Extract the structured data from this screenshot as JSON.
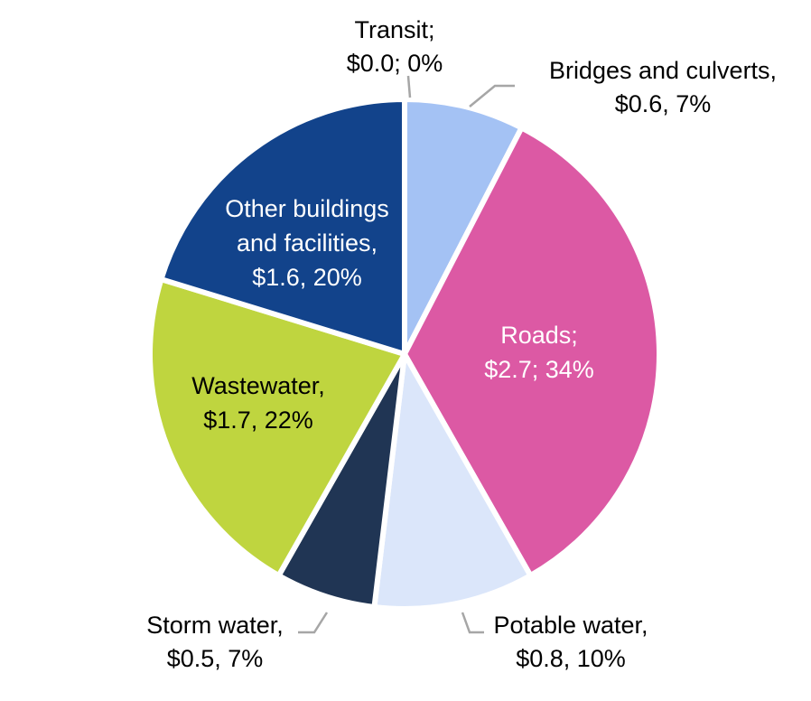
{
  "chart_data": {
    "type": "pie",
    "title": "",
    "slices": [
      {
        "label": "Transit;",
        "value_label": "$0.0; 0%",
        "value": 0.0,
        "percent": 0,
        "color": "#ffffff",
        "text_color": "#000000"
      },
      {
        "label": "Bridges and culverts,",
        "value_label": "$0.6, 7%",
        "value": 0.6,
        "percent": 7,
        "color": "#a4c2f4",
        "text_color": "#000000"
      },
      {
        "label": "Roads;",
        "value_label": "$2.7; 34%",
        "value": 2.7,
        "percent": 34,
        "color": "#dc59a4",
        "text_color": "#ffffff"
      },
      {
        "label": "Potable water,",
        "value_label": "$0.8, 10%",
        "value": 0.8,
        "percent": 10,
        "color": "#dbe6fa",
        "text_color": "#000000"
      },
      {
        "label": "Storm water,",
        "value_label": "$0.5, 7%",
        "value": 0.5,
        "percent": 7,
        "color": "#203554",
        "text_color": "#000000"
      },
      {
        "label": "Wastewater,",
        "value_label": "$1.7, 22%",
        "value": 1.7,
        "percent": 22,
        "color": "#bfd53f",
        "text_color": "#000000"
      },
      {
        "label": "Other buildings and facilities,",
        "value_label": "$1.6, 20%",
        "value": 1.6,
        "percent": 20,
        "color": "#12438b",
        "text_color": "#ffffff"
      }
    ],
    "legend": false
  }
}
